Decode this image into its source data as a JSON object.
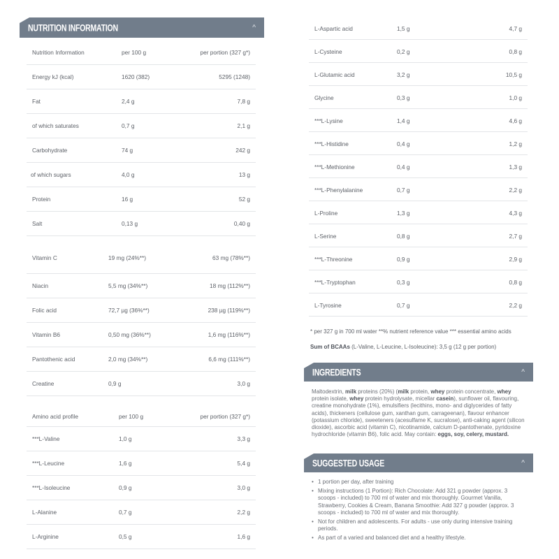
{
  "nutrition": {
    "title": "NUTRITION INFORMATION",
    "chevron": "^",
    "header": [
      "Nutrition Information",
      "per 100 g",
      "per portion (327 g*)"
    ],
    "rows": [
      [
        "Energy kJ (kcal)",
        "1620 (382)",
        "5295 (1248)"
      ],
      [
        "Fat",
        "2,4 g",
        "7,8 g"
      ],
      [
        "of which saturates",
        "0,7 g",
        "2,1 g"
      ],
      [
        "Carbohydrate",
        "74 g",
        "242 g"
      ],
      [
        "of which sugars",
        "4,0 g",
        "13 g"
      ],
      [
        "Protein",
        "16 g",
        "52 g"
      ],
      [
        "Salt",
        "0,13 g",
        "0,40 g"
      ]
    ],
    "vitamins": [
      [
        "Vitamin C",
        "19 mg (24%**)",
        "63 mg (78%**)"
      ],
      [
        "Niacin",
        "5,5 mg (34%**)",
        "18 mg (112%**)"
      ],
      [
        "Folic acid",
        "72,7 µg (36%**)",
        "238 µg (119%**)"
      ],
      [
        "Vitamin B6",
        "0,50 mg (36%**)",
        "1,6 mg (116%**)"
      ],
      [
        "Pantothenic acid",
        "2,0 mg (34%**)",
        "6,6 mg (111%**)"
      ],
      [
        "Creatine",
        "0,9 g",
        "3,0 g"
      ]
    ],
    "amino_header": [
      "Amino acid profile",
      "per 100 g",
      "per portion (327 g*)"
    ],
    "amino_left": [
      [
        "***L-Valine",
        "1,0 g",
        "3,3 g"
      ],
      [
        "***L-Leucine",
        "1,6 g",
        "5,4 g"
      ],
      [
        "***L-Isoleucine",
        "0,9 g",
        "3,0 g"
      ],
      [
        "L-Alanine",
        "0,7 g",
        "2,2 g"
      ],
      [
        "L-Arginine",
        "0,5 g",
        "1,6 g"
      ]
    ],
    "amino_right": [
      [
        "L-Aspartic acid",
        "1,5 g",
        "4,7 g"
      ],
      [
        "L-Cysteine",
        "0,2 g",
        "0,8 g"
      ],
      [
        "L-Glutamic acid",
        "3,2 g",
        "10,5 g"
      ],
      [
        "Glycine",
        "0,3 g",
        "1,0 g"
      ],
      [
        "***L-Lysine",
        "1,4 g",
        "4,6 g"
      ],
      [
        "***L-Histidine",
        "0,4 g",
        "1,2 g"
      ],
      [
        "***L-Methionine",
        "0,4 g",
        "1,3 g"
      ],
      [
        "***L-Phenylalanine",
        "0,7 g",
        "2,2 g"
      ],
      [
        "L-Proline",
        "1,3 g",
        "4,3 g"
      ],
      [
        "L-Serine",
        "0,8 g",
        "2,7 g"
      ],
      [
        "***L-Threonine",
        "0,9 g",
        "2,9 g"
      ],
      [
        "***L-Tryptophan",
        "0,3 g",
        "0,8 g"
      ],
      [
        "L-Tyrosine",
        "0,7 g",
        "2,2 g"
      ]
    ],
    "footnote": "* per 327 g in 700 ml water **% nutrient reference value *** essential amino acids",
    "bcaa_label": "Sum of BCAAs",
    "bcaa_text": " (L-Valine, L-Leucine, L-Isoleucine): 3,5 g (12 g per portion)"
  },
  "ingredients": {
    "title": "INGREDIENTS",
    "chevron": "^",
    "parts": [
      "Maltodextrin, ",
      "milk",
      " proteins (20%) (",
      "milk",
      " protein, ",
      "whey",
      " protein concentrate, ",
      "whey",
      " protein isolate, ",
      "whey",
      " protein hydrolysate, micellar ",
      "casein",
      "), sunflower oil, flavouring, creatine monohydrate (1%), emulsifiers (lecithins, mono- and diglycerides of fatty acids), thickeners (cellulose gum, xanthan gum, carrageenan), flavour enhancer (potassium chloride), sweeteners (acesulfame K, sucralose), anti-caking agent (silicon dioxide), ascorbic acid (vitamin C), nicotinamide, calcium D-pantothenate, pyridoxine hydrochloride (vitamin B6), folic acid. May contain: ",
      "eggs, soy, celery, mustard."
    ]
  },
  "usage": {
    "title": "SUGGESTED USAGE",
    "chevron": "^",
    "items": [
      "1 portion per day, after training",
      "Mixing instructions (1 Portion): Rich Chocolate: Add 321 g powder (approx. 3 scoops - included) to 700 ml of water and mix thoroughly. Gourmet Vanilla, Strawberry, Cookies & Cream, Banana Smoothie: Add 327 g powder (approx. 3 scoops - included) to 700 ml of water and mix thoroughly.",
      "Not for children and adolescents. For adults - use only during intensive training periods.",
      "As part of a varied and balanced diet and a healthy lifestyle."
    ]
  }
}
